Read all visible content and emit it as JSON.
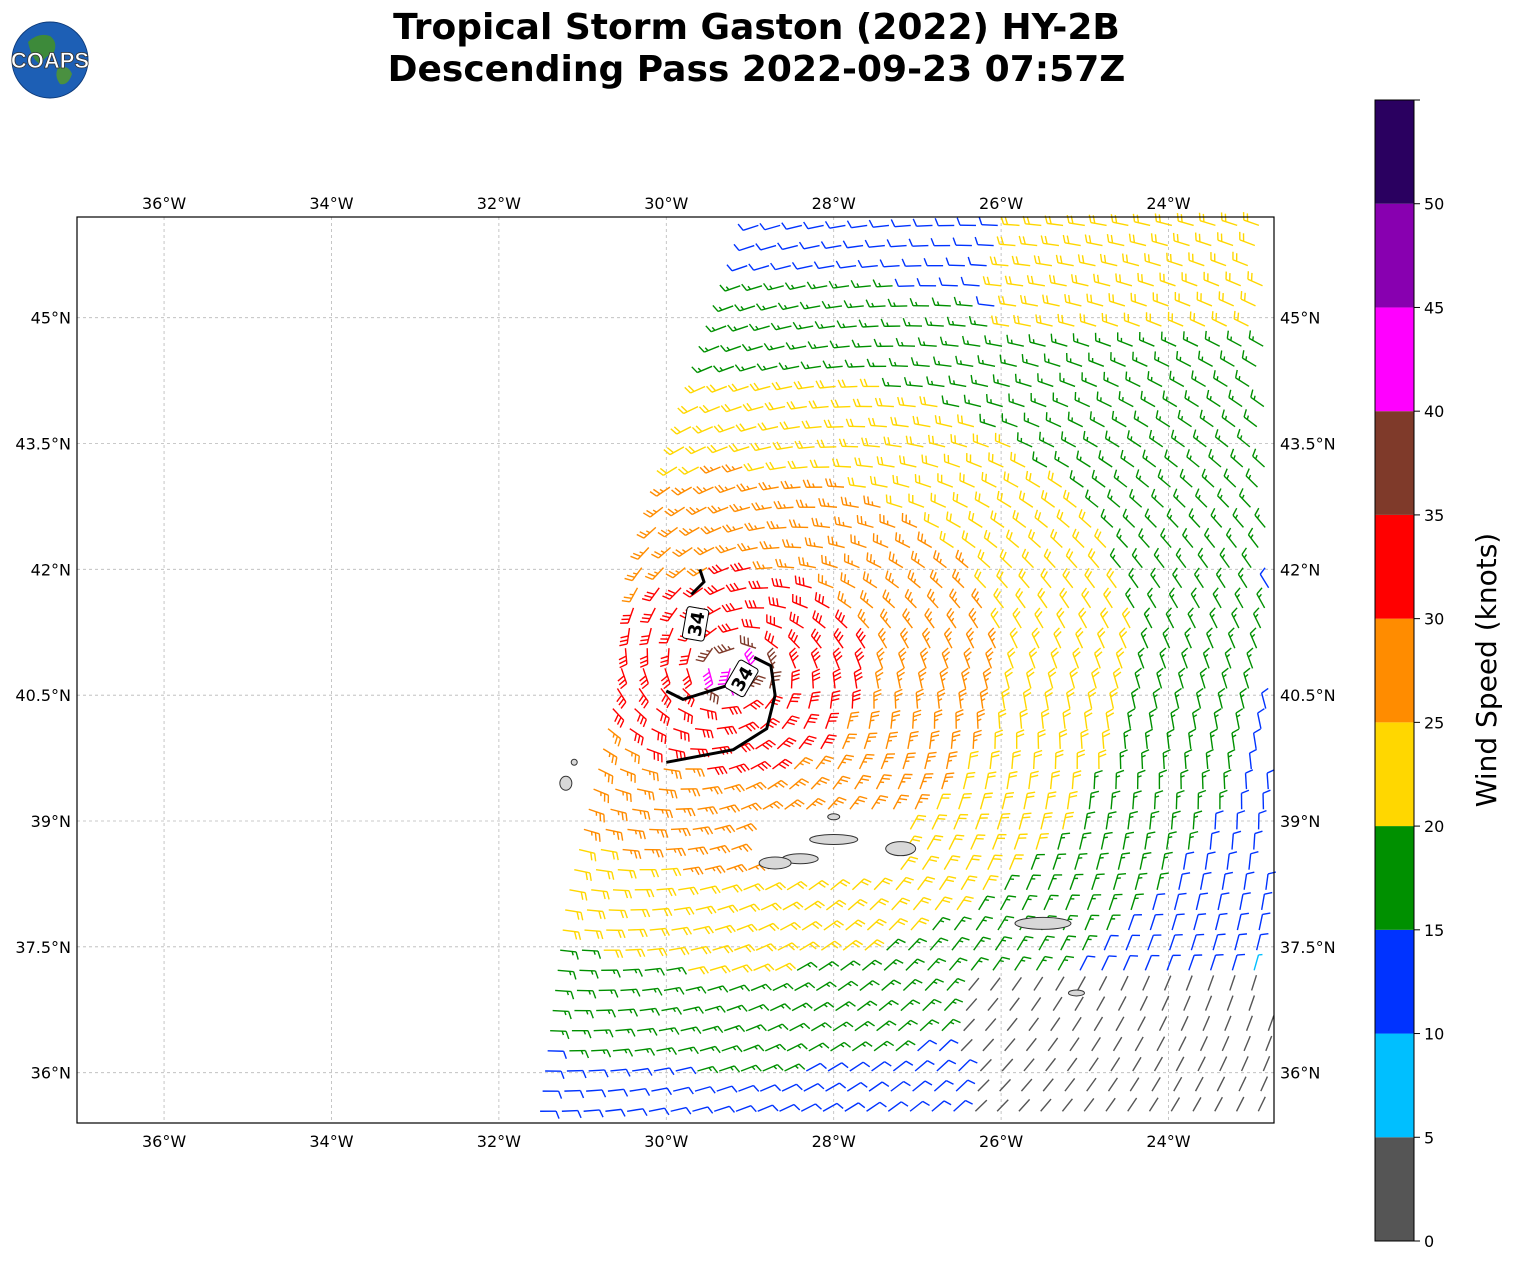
{
  "title_line1": "Tropical Storm Gaston (2022) HY-2B",
  "title_line2": "Descending Pass 2022-09-23 07:57Z",
  "logo": {
    "text": "COAPS",
    "icon": "globe-logo-icon"
  },
  "chart_data": {
    "type": "wind-barb-map",
    "lon_ticks": [
      "36°W",
      "34°W",
      "32°W",
      "30°W",
      "28°W",
      "26°W",
      "24°W"
    ],
    "lon_values": [
      -36,
      -34,
      -32,
      -30,
      -28,
      -26,
      -24
    ],
    "lat_ticks": [
      "45°N",
      "43.5°N",
      "42°N",
      "40.5°N",
      "39°N",
      "37.5°N",
      "36°N"
    ],
    "lat_values": [
      45,
      43.5,
      42,
      40.5,
      39,
      37.5,
      36
    ],
    "lon_range": [
      -37.04,
      -22.74
    ],
    "lat_range": [
      35.4,
      46.2
    ],
    "grid": true,
    "contour_label": "34",
    "contour_labels": [
      "34",
      "34"
    ],
    "storm_center": {
      "lon": -29.2,
      "lat": 40.8
    },
    "colorbar": {
      "label": "Wind Speed (knots)",
      "ticks": [
        "0",
        "5",
        "10",
        "15",
        "20",
        "25",
        "30",
        "35",
        "40",
        "45",
        "50"
      ],
      "bins": [
        0,
        5,
        10,
        15,
        20,
        25,
        30,
        35,
        40,
        45,
        50,
        55
      ],
      "colors": [
        "#555555",
        "#00bfff",
        "#0033ff",
        "#009000",
        "#ffd700",
        "#ff8c00",
        "#ff0000",
        "#7f3a2a",
        "#ff00ff",
        "#8800b0",
        "#2a0060"
      ]
    }
  }
}
